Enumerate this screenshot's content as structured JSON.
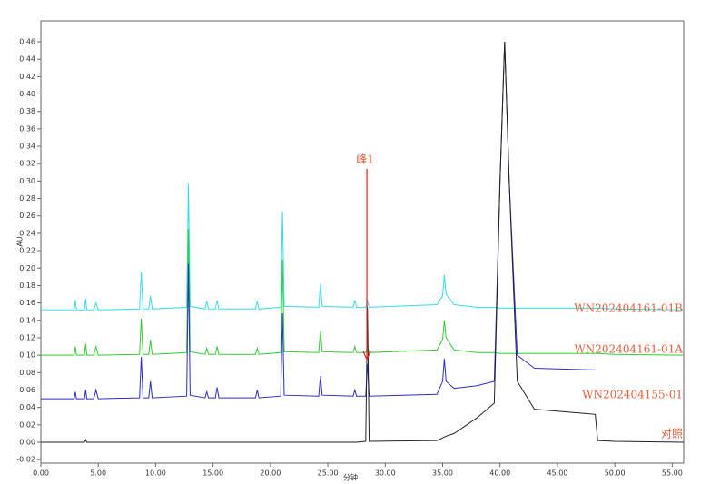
{
  "chart_data": {
    "type": "line",
    "x_label": "分钟",
    "y_label": "AU",
    "annotation": {
      "text": "峰1",
      "x": 28.4,
      "y": 0.095,
      "color": "#e02020"
    },
    "xlim": [
      0,
      56
    ],
    "ylim": [
      -0.024,
      0.484
    ],
    "xticks": [
      {
        "value": 0,
        "label": "0.00"
      },
      {
        "value": 5,
        "label": "5.00"
      },
      {
        "value": 10,
        "label": "10.00"
      },
      {
        "value": 15,
        "label": "15.00"
      },
      {
        "value": 20,
        "label": "20.00"
      },
      {
        "value": 25,
        "label": "25.00"
      },
      {
        "value": 30,
        "label": "30.00"
      },
      {
        "value": 35,
        "label": "35.00"
      },
      {
        "value": 40,
        "label": "40.00"
      },
      {
        "value": 45,
        "label": "45.00"
      },
      {
        "value": 50,
        "label": "50.00"
      },
      {
        "value": 55,
        "label": "55.00"
      }
    ],
    "yticks": [
      {
        "value": -0.02,
        "label": "-0.02"
      },
      {
        "value": 0,
        "label": "0.00"
      },
      {
        "value": 0.02,
        "label": "0.02"
      },
      {
        "value": 0.04,
        "label": "0.04"
      },
      {
        "value": 0.06,
        "label": "0.06"
      },
      {
        "value": 0.08,
        "label": "0.08"
      },
      {
        "value": 0.1,
        "label": "0.10"
      },
      {
        "value": 0.12,
        "label": "0.12"
      },
      {
        "value": 0.14,
        "label": "0.14"
      },
      {
        "value": 0.16,
        "label": "0.16"
      },
      {
        "value": 0.18,
        "label": "0.18"
      },
      {
        "value": 0.2,
        "label": "0.20"
      },
      {
        "value": 0.22,
        "label": "0.22"
      },
      {
        "value": 0.24,
        "label": "0.24"
      },
      {
        "value": 0.26,
        "label": "0.26"
      },
      {
        "value": 0.28,
        "label": "0.28"
      },
      {
        "value": 0.3,
        "label": "0.30"
      },
      {
        "value": 0.32,
        "label": "0.32"
      },
      {
        "value": 0.34,
        "label": "0.34"
      },
      {
        "value": 0.36,
        "label": "0.36"
      },
      {
        "value": 0.38,
        "label": "0.38"
      },
      {
        "value": 0.4,
        "label": "0.40"
      },
      {
        "value": 0.42,
        "label": "0.42"
      },
      {
        "value": 0.44,
        "label": "0.44"
      },
      {
        "value": 0.46,
        "label": "0.46"
      }
    ],
    "x": [
      0,
      2.9,
      3.0,
      3.1,
      3.8,
      3.9,
      4.0,
      4.6,
      4.8,
      5.0,
      8.6,
      8.75,
      8.9,
      9.4,
      9.55,
      9.7,
      12.7,
      12.85,
      13.0,
      14.3,
      14.45,
      14.6,
      15.2,
      15.35,
      15.5,
      18.7,
      18.85,
      19.0,
      20.9,
      21.05,
      21.2,
      24.2,
      24.35,
      24.5,
      27.2,
      27.35,
      27.5,
      28.3,
      28.45,
      28.6,
      34.5,
      35.0,
      35.15,
      35.3,
      36.0,
      38.0,
      39.5,
      40.0,
      40.4,
      40.8,
      41.5,
      43.0,
      48.3,
      48.5,
      50,
      56
    ],
    "series": [
      {
        "name": "WN202404161-01B",
        "color": "#33dde8",
        "values": [
          0.152,
          0.152,
          0.163,
          0.152,
          0.152,
          0.165,
          0.152,
          0.152,
          0.16,
          0.152,
          0.153,
          0.196,
          0.153,
          0.153,
          0.168,
          0.153,
          0.155,
          0.297,
          0.156,
          0.153,
          0.162,
          0.153,
          0.153,
          0.163,
          0.153,
          0.153,
          0.162,
          0.153,
          0.155,
          0.265,
          0.156,
          0.155,
          0.182,
          0.156,
          0.155,
          0.163,
          0.155,
          0.155,
          0.162,
          0.155,
          0.158,
          0.168,
          0.192,
          0.17,
          0.158,
          0.155,
          0.155,
          0.154,
          0.154,
          0.154,
          0.154,
          0.154,
          0.154,
          0.154,
          0.153,
          0.152
        ]
      },
      {
        "name": "WN202404161-01A",
        "color": "#33cc33",
        "values": [
          0.1,
          0.1,
          0.11,
          0.1,
          0.1,
          0.113,
          0.1,
          0.1,
          0.11,
          0.1,
          0.101,
          0.142,
          0.101,
          0.101,
          0.118,
          0.101,
          0.103,
          0.245,
          0.104,
          0.101,
          0.108,
          0.101,
          0.101,
          0.11,
          0.101,
          0.101,
          0.108,
          0.101,
          0.103,
          0.21,
          0.104,
          0.103,
          0.128,
          0.104,
          0.103,
          0.11,
          0.103,
          0.103,
          0.11,
          0.103,
          0.106,
          0.118,
          0.14,
          0.12,
          0.106,
          0.103,
          0.103,
          0.102,
          0.102,
          0.102,
          0.102,
          0.102,
          0.102,
          0.102,
          0.101,
          0.1
        ]
      },
      {
        "name": "WN202404155-01",
        "color": "#2c2ccc",
        "values": [
          0.05,
          0.05,
          0.058,
          0.05,
          0.05,
          0.06,
          0.05,
          0.05,
          0.06,
          0.05,
          0.051,
          0.098,
          0.051,
          0.051,
          0.07,
          0.051,
          0.053,
          0.205,
          0.054,
          0.051,
          0.058,
          0.051,
          0.051,
          0.063,
          0.051,
          0.051,
          0.06,
          0.051,
          0.053,
          0.148,
          0.054,
          0.053,
          0.076,
          0.054,
          0.053,
          0.06,
          0.053,
          0.053,
          0.09,
          0.053,
          0.055,
          0.07,
          0.096,
          0.07,
          0.062,
          0.065,
          0.07,
          0.3,
          0.46,
          0.3,
          0.1,
          0.085,
          0.083,
          null,
          null,
          null
        ]
      },
      {
        "name": "对照",
        "color": "#222222",
        "values": [
          0,
          0,
          0,
          0,
          0,
          0.003,
          0,
          0,
          0,
          0,
          0,
          0,
          0,
          0,
          0,
          0,
          0,
          0,
          0,
          0,
          0,
          0,
          0,
          0,
          0,
          0,
          0,
          0,
          0,
          0,
          0,
          0,
          0,
          0,
          0,
          0,
          0,
          0.001,
          0.155,
          0.001,
          0.002,
          0.005,
          0.006,
          0.007,
          0.01,
          0.028,
          0.045,
          0.3,
          0.46,
          0.3,
          0.07,
          0.038,
          0.032,
          0.002,
          0.001,
          0
        ]
      }
    ]
  }
}
